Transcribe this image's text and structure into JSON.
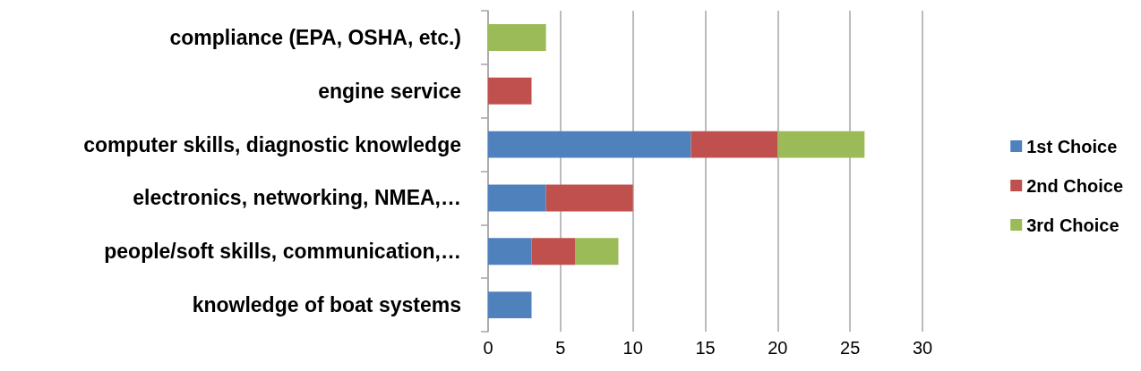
{
  "chart_data": {
    "type": "bar",
    "orientation": "horizontal",
    "stacked": true,
    "categories": [
      "compliance (EPA, OSHA, etc.)",
      "engine service",
      "computer skills, diagnostic knowledge",
      "electronics, networking, NMEA,…",
      "people/soft skills, communication,…",
      "knowledge of boat systems"
    ],
    "series": [
      {
        "name": "1st Choice",
        "color": "#4f81bd",
        "values": [
          0,
          0,
          14,
          4,
          3,
          3
        ]
      },
      {
        "name": "2nd Choice",
        "color": "#c0504d",
        "values": [
          0,
          3,
          6,
          6,
          3,
          0
        ]
      },
      {
        "name": "3rd Choice",
        "color": "#9bbb59",
        "values": [
          4,
          0,
          6,
          0,
          3,
          0
        ]
      }
    ],
    "xlim": [
      0,
      30
    ],
    "xticks": [
      0,
      5,
      10,
      15,
      20,
      25,
      30
    ],
    "grid": "x",
    "legend": "right"
  }
}
